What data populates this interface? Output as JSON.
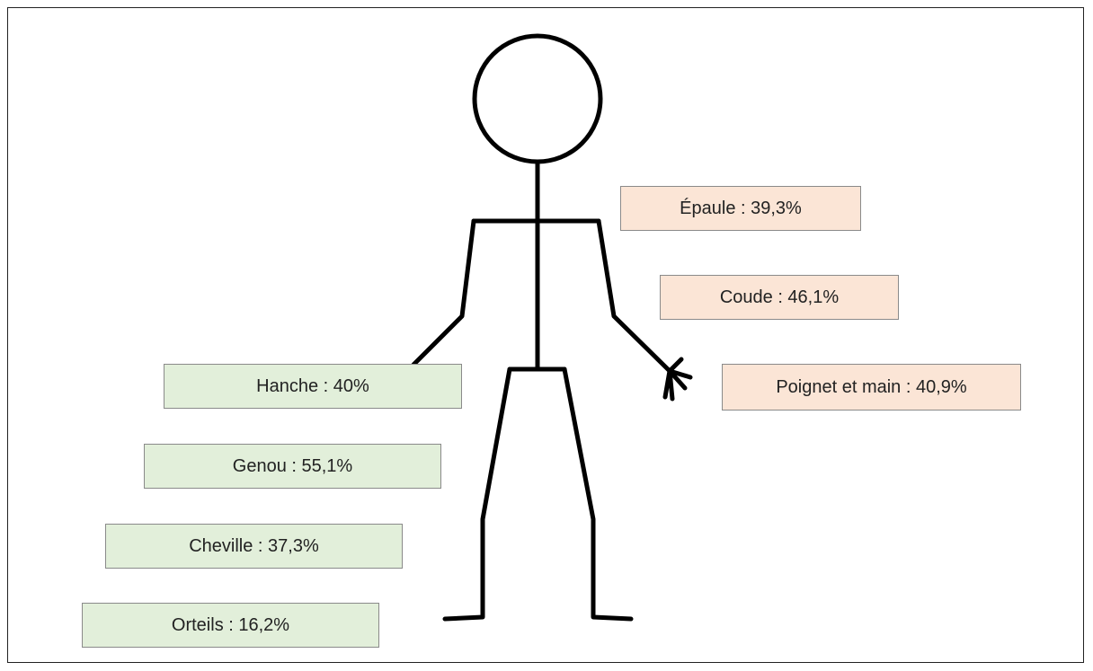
{
  "upper_labels": [
    "Épaule : 39,3%",
    "Coude : 46,1%",
    "Poignet et main : 40,9%"
  ],
  "lower_labels": [
    "Hanche : 40%",
    "Genou : 55,1%",
    "Cheville : 37,3%",
    "Orteils : 16,2%"
  ]
}
